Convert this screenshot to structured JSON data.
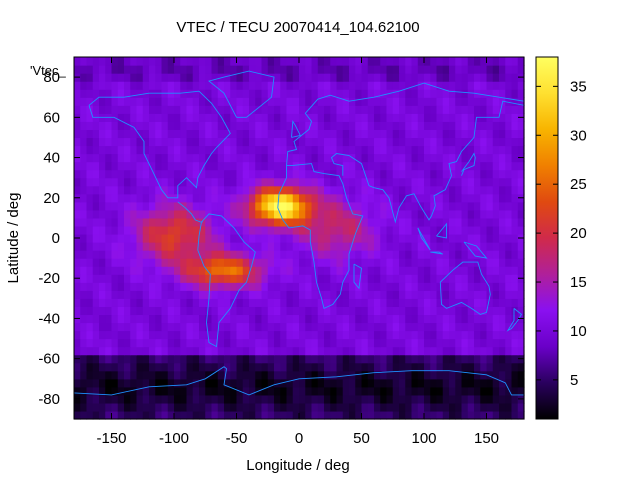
{
  "chart_data": {
    "type": "heatmap",
    "title": "VTEC / TECU 20070414_104.62100",
    "xlabel": "Longitude / deg",
    "ylabel": "Latitude / deg",
    "key_label": "'Vtec_",
    "xlim": [
      -180,
      180
    ],
    "ylim": [
      -90,
      90
    ],
    "zlim": [
      1,
      38
    ],
    "x_ticks": [
      -150,
      -100,
      -50,
      0,
      50,
      100,
      150
    ],
    "y_ticks": [
      -80,
      -60,
      -40,
      -20,
      0,
      20,
      40,
      60,
      80
    ],
    "colorbar_ticks": [
      5,
      10,
      15,
      20,
      25,
      30,
      35
    ],
    "colormap": [
      "#000000",
      "#2a005e",
      "#6a00c8",
      "#8a10f0",
      "#b0209a",
      "#d02a4a",
      "#e04a10",
      "#f08000",
      "#f8b400",
      "#ffe030",
      "#ffff60"
    ],
    "coastline_color": "#1e90ff",
    "field": {
      "background_tec": 10,
      "equatorial_anomaly": [
        {
          "lon": -15,
          "lat": 16,
          "peak_tec": 38,
          "lon_spread": 24,
          "lat_spread": 9
        },
        {
          "lon": -60,
          "lat": -16,
          "peak_tec": 26,
          "lon_spread": 30,
          "lat_spread": 8
        },
        {
          "lon": -100,
          "lat": 2,
          "peak_tec": 22,
          "lon_spread": 30,
          "lat_spread": 14
        },
        {
          "lon": 30,
          "lat": 5,
          "peak_tec": 18,
          "lon_spread": 30,
          "lat_spread": 14
        }
      ],
      "high_latitude_low": [
        {
          "lat_band": [
            -90,
            -58
          ],
          "tec": 2
        },
        {
          "lat_band": [
            78,
            90
          ],
          "tec": 8
        }
      ]
    }
  }
}
